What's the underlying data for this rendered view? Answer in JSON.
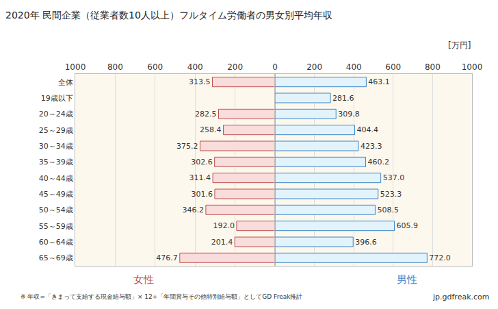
{
  "chart_data": [
    {
      "type": "bar",
      "title": "2020年 民間企業（従業者数10人以上）フルタイム労働者の男女別平均年収",
      "orientation": "horizontal",
      "categories": [
        "全体",
        "19歳以下",
        "20～24歳",
        "25～29歳",
        "30～34歳",
        "35～39歳",
        "40～44歳",
        "45～49歳",
        "50～54歳",
        "55～59歳",
        "60～64歳",
        "65～69歳"
      ],
      "series": [
        {
          "name": "女性",
          "color": "#f9dcdc",
          "values": [
            313.5,
            null,
            282.5,
            258.4,
            375.2,
            302.6,
            311.4,
            301.6,
            346.2,
            192.0,
            201.4,
            476.7
          ],
          "value_labels": [
            "313.5",
            null,
            "282.5",
            "258.4",
            "375.2",
            "302.6",
            "311.4",
            "301.6",
            "346.2",
            "192.0",
            "201.4",
            "476.7"
          ]
        }
      ],
      "xlim": [
        1000,
        0
      ],
      "xticks": [
        0,
        200,
        400,
        600,
        800,
        1000
      ],
      "grid": true,
      "data_labels": true,
      "tick_labels": true,
      "annotations": [
        "※ 年収=「きまって支給する現金給与額」× 12+「年間賞与その他特別給与額」としてGD Freak推計",
        "jp.gdfreak.com"
      ]
    },
    {
      "type": "bar",
      "orientation": "horizontal",
      "x_label": "[万円]",
      "categories": [
        "全体",
        "19歳以下",
        "20～24歳",
        "25～29歳",
        "30～34歳",
        "35～39歳",
        "40～44歳",
        "45～49歳",
        "50～54歳",
        "55～59歳",
        "60～64歳",
        "65～69歳"
      ],
      "series": [
        {
          "name": "男性",
          "color": "#e2f3fc",
          "values": [
            463.1,
            281.6,
            309.8,
            404.4,
            423.3,
            460.2,
            537.0,
            523.3,
            508.5,
            605.9,
            396.6,
            772.0
          ],
          "value_labels": [
            "463.1",
            "281.6",
            "309.8",
            "404.4",
            "423.3",
            "460.2",
            "537.0",
            "523.3",
            "508.5",
            "605.9",
            "396.6",
            "772.0"
          ]
        }
      ],
      "xlim": [
        0,
        1000
      ],
      "xticks": [
        200,
        400,
        600,
        800,
        1000
      ],
      "grid": true,
      "data_labels": true,
      "tick_labels": "x"
    }
  ]
}
